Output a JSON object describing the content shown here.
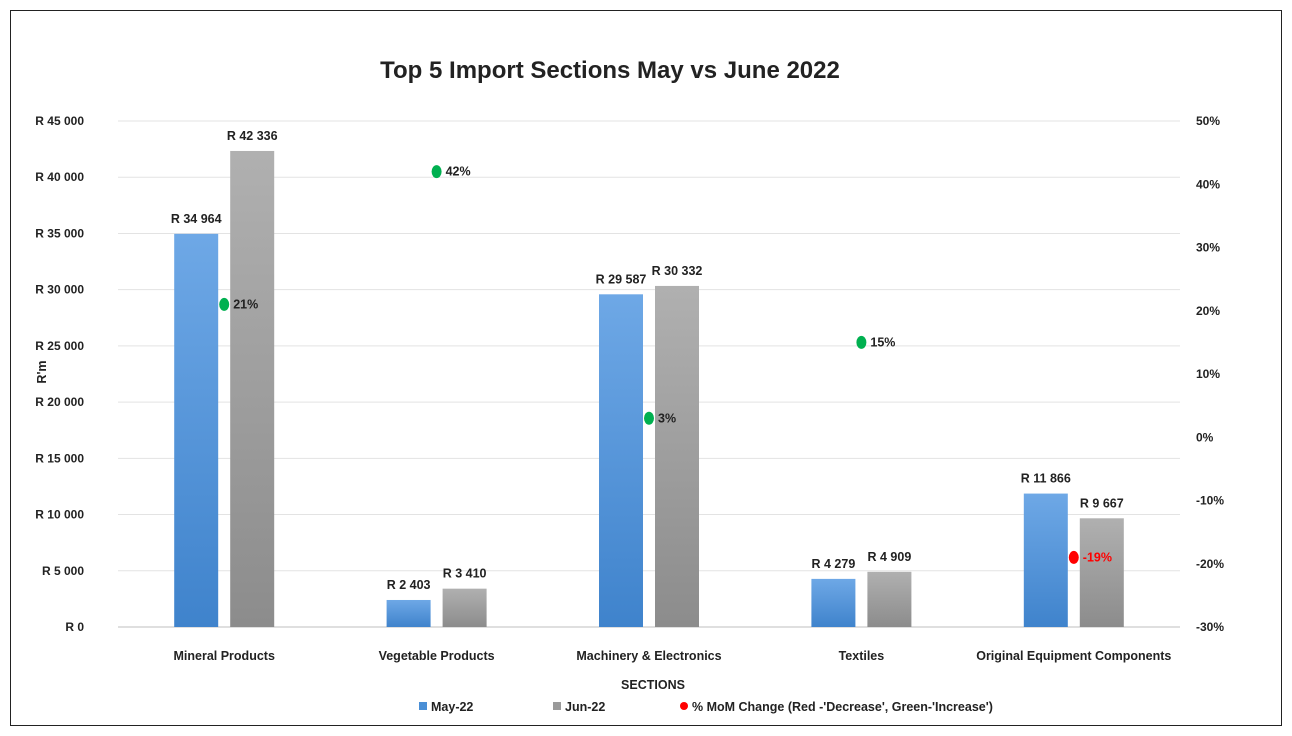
{
  "chart_data": {
    "type": "bar",
    "title": "Top 5 Import Sections May vs June 2022",
    "xlabel": "SECTIONS",
    "ylabel": "R'm",
    "categories": [
      "Mineral Products",
      "Vegetable Products",
      "Machinery & Electronics",
      "Textiles",
      "Original Equipment Components"
    ],
    "series": [
      {
        "name": "May-22",
        "values": [
          34964,
          2403,
          29587,
          4279,
          11866
        ],
        "labels": [
          "R 34 964",
          "R 2 403",
          "R 29 587",
          "R 4 279",
          "R 11 866"
        ],
        "color": "#4a8fd6"
      },
      {
        "name": "Jun-22",
        "values": [
          42336,
          3410,
          30332,
          4909,
          9667
        ],
        "labels": [
          "R 42 336",
          "R 3 410",
          "R 30 332",
          "R 4 909",
          "R 9 667"
        ],
        "color": "#9a9a9a"
      }
    ],
    "secondary_series": {
      "name": "% MoM Change (Red -'Decrease', Green-'Increase')",
      "type": "scatter",
      "values": [
        21,
        42,
        3,
        15,
        -19
      ],
      "labels": [
        "21%",
        "42%",
        "3%",
        "15%",
        "-19%"
      ],
      "increase_color": "#00b050",
      "decrease_color": "#ff0000"
    },
    "ylim": [
      0,
      45000
    ],
    "y_ticks": [
      "R 0",
      "R 5 000",
      "R 10 000",
      "R 15 000",
      "R 20 000",
      "R 25 000",
      "R 30 000",
      "R 35 000",
      "R 40 000",
      "R 45 000"
    ],
    "y2lim": [
      -30,
      50
    ],
    "y2_ticks": [
      "-30%",
      "-20%",
      "-10%",
      "0%",
      "10%",
      "20%",
      "30%",
      "40%",
      "50%"
    ],
    "grid": true,
    "legend_position": "bottom"
  }
}
